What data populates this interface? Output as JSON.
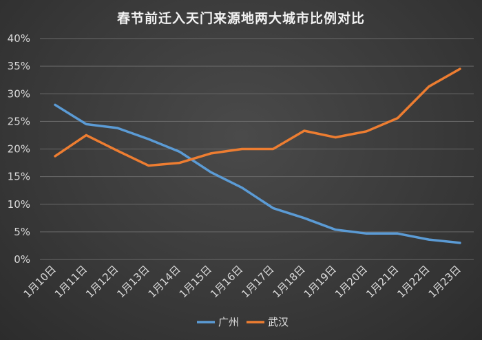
{
  "chart_data": {
    "type": "line",
    "title": "春节前迁入天门来源地两大城市比例对比",
    "categories": [
      "1月10日",
      "1月11日",
      "1月12日",
      "1月13日",
      "1月14日",
      "1月15日",
      "1月16日",
      "1月17日",
      "1月18日",
      "1月19日",
      "1月20日",
      "1月21日",
      "1月22日",
      "1月23日"
    ],
    "series": [
      {
        "name": "广州",
        "color": "#5b9bd5",
        "values": [
          28.0,
          24.5,
          23.8,
          21.8,
          19.5,
          15.8,
          13.0,
          9.3,
          7.5,
          5.4,
          4.7,
          4.7,
          3.6,
          3.0
        ]
      },
      {
        "name": "武汉",
        "color": "#ed7d31",
        "values": [
          18.7,
          22.5,
          19.7,
          17.0,
          17.5,
          19.2,
          20.0,
          20.0,
          23.3,
          22.1,
          23.2,
          25.6,
          31.3,
          34.5
        ]
      }
    ],
    "yticks": [
      "0%",
      "5%",
      "10%",
      "15%",
      "20%",
      "25%",
      "30%",
      "35%",
      "40%"
    ],
    "ylim": [
      0,
      40
    ],
    "grid": true,
    "legend_position": "bottom"
  }
}
